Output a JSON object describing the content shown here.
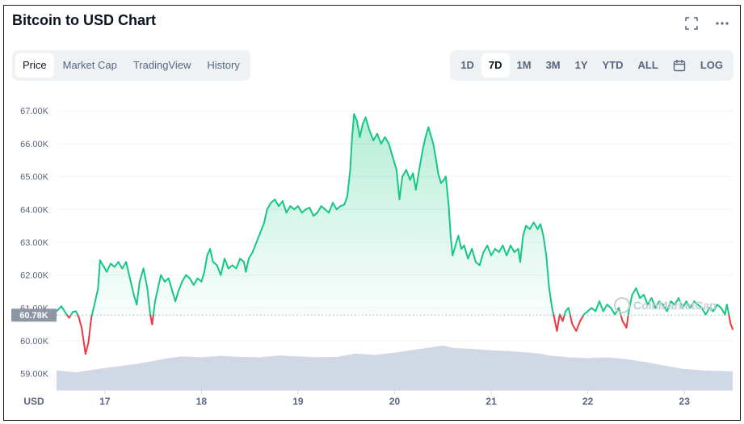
{
  "title": "Bitcoin to USD Chart",
  "icons": [
    "fullscreen-icon",
    "more-icon"
  ],
  "tabs": [
    {
      "label": "Price",
      "active": true
    },
    {
      "label": "Market Cap",
      "active": false
    },
    {
      "label": "TradingView",
      "active": false
    },
    {
      "label": "History",
      "active": false
    }
  ],
  "ranges": [
    {
      "label": "1D",
      "active": false
    },
    {
      "label": "7D",
      "active": true
    },
    {
      "label": "1M",
      "active": false
    },
    {
      "label": "3M",
      "active": false
    },
    {
      "label": "1Y",
      "active": false
    },
    {
      "label": "YTD",
      "active": false
    },
    {
      "label": "ALL",
      "active": false
    },
    {
      "label": "LOG",
      "active": false
    }
  ],
  "watermark": "CoinMarketCap",
  "colors": {
    "up": "#16c784",
    "down": "#ea3943",
    "volume": "#cfd6e4",
    "badge": "#8d96a3"
  },
  "chart_data": {
    "type": "line",
    "ylabel": "USD",
    "ylim": [
      58500,
      67300
    ],
    "yticks": [
      "67.00K",
      "66.00K",
      "65.00K",
      "64.00K",
      "63.00K",
      "62.00K",
      "61.00K",
      "60.00K",
      "59.00K"
    ],
    "ytick_values": [
      67000,
      66000,
      65000,
      64000,
      63000,
      62000,
      61000,
      60000,
      59000
    ],
    "xticks": [
      "17",
      "18",
      "19",
      "20",
      "21",
      "22",
      "23"
    ],
    "xlim": [
      16.5,
      23.5
    ],
    "baseline_label": "60.78K",
    "baseline_value": 60780,
    "series": [
      {
        "values": [
          [
            16.5,
            60.9
          ],
          [
            16.55,
            61.05
          ],
          [
            16.6,
            60.82
          ],
          [
            16.63,
            60.7
          ],
          [
            16.67,
            60.88
          ],
          [
            16.7,
            60.9
          ],
          [
            16.73,
            60.72
          ],
          [
            16.76,
            60.4
          ],
          [
            16.8,
            59.6
          ],
          [
            16.83,
            59.95
          ],
          [
            16.86,
            60.7
          ],
          [
            16.9,
            61.2
          ],
          [
            16.93,
            61.6
          ],
          [
            16.95,
            62.45
          ],
          [
            16.98,
            62.3
          ],
          [
            17.02,
            62.1
          ],
          [
            17.06,
            62.35
          ],
          [
            17.1,
            62.25
          ],
          [
            17.14,
            62.4
          ],
          [
            17.18,
            62.2
          ],
          [
            17.22,
            62.4
          ],
          [
            17.26,
            61.9
          ],
          [
            17.3,
            61.4
          ],
          [
            17.33,
            61.1
          ],
          [
            17.36,
            61.8
          ],
          [
            17.4,
            62.2
          ],
          [
            17.44,
            61.6
          ],
          [
            17.47,
            60.8
          ],
          [
            17.49,
            60.5
          ],
          [
            17.52,
            61.2
          ],
          [
            17.55,
            61.6
          ],
          [
            17.58,
            62.0
          ],
          [
            17.62,
            61.8
          ],
          [
            17.66,
            61.9
          ],
          [
            17.7,
            61.5
          ],
          [
            17.73,
            61.2
          ],
          [
            17.76,
            61.5
          ],
          [
            17.8,
            61.8
          ],
          [
            17.84,
            62.0
          ],
          [
            17.88,
            61.9
          ],
          [
            17.92,
            61.7
          ],
          [
            17.96,
            61.9
          ],
          [
            18.0,
            61.8
          ],
          [
            18.03,
            62.1
          ],
          [
            18.06,
            62.6
          ],
          [
            18.09,
            62.8
          ],
          [
            18.12,
            62.4
          ],
          [
            18.16,
            62.3
          ],
          [
            18.2,
            62.0
          ],
          [
            18.24,
            62.5
          ],
          [
            18.28,
            62.2
          ],
          [
            18.32,
            62.3
          ],
          [
            18.36,
            62.2
          ],
          [
            18.4,
            62.5
          ],
          [
            18.44,
            62.4
          ],
          [
            18.46,
            62.1
          ],
          [
            18.49,
            62.5
          ],
          [
            18.53,
            62.7
          ],
          [
            18.57,
            63.0
          ],
          [
            18.61,
            63.3
          ],
          [
            18.65,
            63.6
          ],
          [
            18.68,
            64.0
          ],
          [
            18.72,
            64.2
          ],
          [
            18.76,
            64.3
          ],
          [
            18.8,
            64.1
          ],
          [
            18.84,
            64.25
          ],
          [
            18.88,
            63.9
          ],
          [
            18.92,
            64.1
          ],
          [
            18.96,
            64.0
          ],
          [
            19.0,
            64.1
          ],
          [
            19.04,
            63.9
          ],
          [
            19.08,
            64.0
          ],
          [
            19.12,
            64.05
          ],
          [
            19.16,
            63.8
          ],
          [
            19.2,
            63.9
          ],
          [
            19.24,
            64.1
          ],
          [
            19.28,
            64.0
          ],
          [
            19.32,
            63.9
          ],
          [
            19.36,
            64.2
          ],
          [
            19.4,
            64.0
          ],
          [
            19.44,
            64.1
          ],
          [
            19.48,
            64.15
          ],
          [
            19.51,
            64.4
          ],
          [
            19.54,
            65.2
          ],
          [
            19.56,
            66.2
          ],
          [
            19.58,
            66.9
          ],
          [
            19.61,
            66.7
          ],
          [
            19.64,
            66.2
          ],
          [
            19.67,
            66.6
          ],
          [
            19.7,
            66.8
          ],
          [
            19.74,
            66.4
          ],
          [
            19.78,
            66.1
          ],
          [
            19.82,
            66.3
          ],
          [
            19.86,
            66.0
          ],
          [
            19.9,
            66.2
          ],
          [
            19.94,
            66.0
          ],
          [
            19.98,
            65.6
          ],
          [
            20.02,
            65.2
          ],
          [
            20.05,
            64.3
          ],
          [
            20.08,
            65.0
          ],
          [
            20.12,
            65.2
          ],
          [
            20.16,
            64.9
          ],
          [
            20.19,
            65.1
          ],
          [
            20.22,
            64.6
          ],
          [
            20.26,
            65.3
          ],
          [
            20.29,
            65.8
          ],
          [
            20.32,
            66.2
          ],
          [
            20.35,
            66.5
          ],
          [
            20.37,
            66.3
          ],
          [
            20.4,
            66.0
          ],
          [
            20.43,
            65.5
          ],
          [
            20.45,
            65.1
          ],
          [
            20.48,
            64.8
          ],
          [
            20.51,
            64.9
          ],
          [
            20.53,
            65.0
          ],
          [
            20.56,
            64.1
          ],
          [
            20.58,
            63.2
          ],
          [
            20.6,
            62.6
          ],
          [
            20.63,
            62.9
          ],
          [
            20.66,
            63.2
          ],
          [
            20.69,
            62.8
          ],
          [
            20.72,
            62.9
          ],
          [
            20.76,
            62.5
          ],
          [
            20.8,
            62.8
          ],
          [
            20.84,
            62.4
          ],
          [
            20.88,
            62.3
          ],
          [
            20.92,
            62.7
          ],
          [
            20.96,
            62.9
          ],
          [
            21.0,
            62.6
          ],
          [
            21.04,
            62.8
          ],
          [
            21.08,
            62.7
          ],
          [
            21.12,
            62.9
          ],
          [
            21.16,
            62.6
          ],
          [
            21.2,
            62.9
          ],
          [
            21.24,
            62.7
          ],
          [
            21.28,
            62.8
          ],
          [
            21.3,
            62.4
          ],
          [
            21.33,
            63.2
          ],
          [
            21.36,
            63.5
          ],
          [
            21.4,
            63.4
          ],
          [
            21.44,
            63.6
          ],
          [
            21.48,
            63.4
          ],
          [
            21.51,
            63.55
          ],
          [
            21.54,
            63.2
          ],
          [
            21.57,
            62.6
          ],
          [
            21.6,
            61.6
          ],
          [
            21.63,
            61.0
          ],
          [
            21.66,
            60.6
          ],
          [
            21.68,
            60.3
          ],
          [
            21.71,
            60.8
          ],
          [
            21.74,
            60.6
          ],
          [
            21.77,
            60.9
          ],
          [
            21.8,
            61.0
          ],
          [
            21.84,
            60.5
          ],
          [
            21.88,
            60.3
          ],
          [
            21.92,
            60.6
          ],
          [
            21.96,
            60.8
          ],
          [
            22.0,
            60.9
          ],
          [
            22.04,
            61.0
          ],
          [
            22.08,
            60.9
          ],
          [
            22.12,
            61.2
          ],
          [
            22.16,
            60.9
          ],
          [
            22.2,
            61.1
          ],
          [
            22.24,
            61.0
          ],
          [
            22.28,
            60.8
          ],
          [
            22.32,
            61.0
          ],
          [
            22.36,
            60.6
          ],
          [
            22.4,
            60.4
          ],
          [
            22.43,
            61.0
          ],
          [
            22.46,
            61.4
          ],
          [
            22.5,
            61.6
          ],
          [
            22.54,
            61.3
          ],
          [
            22.58,
            61.4
          ],
          [
            22.62,
            61.1
          ],
          [
            22.66,
            61.3
          ],
          [
            22.7,
            61.0
          ],
          [
            22.74,
            61.2
          ],
          [
            22.78,
            61.1
          ],
          [
            22.82,
            60.9
          ],
          [
            22.86,
            61.2
          ],
          [
            22.9,
            61.1
          ],
          [
            22.94,
            61.3
          ],
          [
            22.98,
            61.0
          ],
          [
            23.02,
            61.2
          ],
          [
            23.06,
            61.0
          ],
          [
            23.1,
            61.2
          ],
          [
            23.14,
            61.1
          ],
          [
            23.18,
            61.0
          ],
          [
            23.22,
            60.8
          ],
          [
            23.26,
            61.0
          ],
          [
            23.3,
            60.9
          ],
          [
            23.34,
            61.1
          ],
          [
            23.38,
            61.0
          ],
          [
            23.42,
            60.8
          ],
          [
            23.44,
            61.1
          ],
          [
            23.46,
            60.8
          ],
          [
            23.48,
            60.5
          ],
          [
            23.5,
            60.35
          ]
        ]
      }
    ],
    "volume": [
      [
        16.5,
        0.42
      ],
      [
        16.7,
        0.38
      ],
      [
        16.9,
        0.44
      ],
      [
        17.1,
        0.5
      ],
      [
        17.3,
        0.55
      ],
      [
        17.5,
        0.62
      ],
      [
        17.65,
        0.68
      ],
      [
        17.8,
        0.72
      ],
      [
        18.0,
        0.7
      ],
      [
        18.2,
        0.73
      ],
      [
        18.4,
        0.71
      ],
      [
        18.6,
        0.7
      ],
      [
        18.8,
        0.74
      ],
      [
        19.0,
        0.72
      ],
      [
        19.2,
        0.7
      ],
      [
        19.4,
        0.71
      ],
      [
        19.6,
        0.78
      ],
      [
        19.8,
        0.75
      ],
      [
        20.0,
        0.8
      ],
      [
        20.2,
        0.86
      ],
      [
        20.4,
        0.92
      ],
      [
        20.5,
        0.95
      ],
      [
        20.6,
        0.9
      ],
      [
        20.8,
        0.88
      ],
      [
        21.0,
        0.85
      ],
      [
        21.2,
        0.83
      ],
      [
        21.4,
        0.8
      ],
      [
        21.5,
        0.78
      ],
      [
        21.6,
        0.74
      ],
      [
        21.8,
        0.7
      ],
      [
        22.0,
        0.68
      ],
      [
        22.2,
        0.7
      ],
      [
        22.4,
        0.66
      ],
      [
        22.6,
        0.6
      ],
      [
        22.8,
        0.52
      ],
      [
        23.0,
        0.45
      ],
      [
        23.2,
        0.42
      ],
      [
        23.5,
        0.4
      ]
    ]
  }
}
